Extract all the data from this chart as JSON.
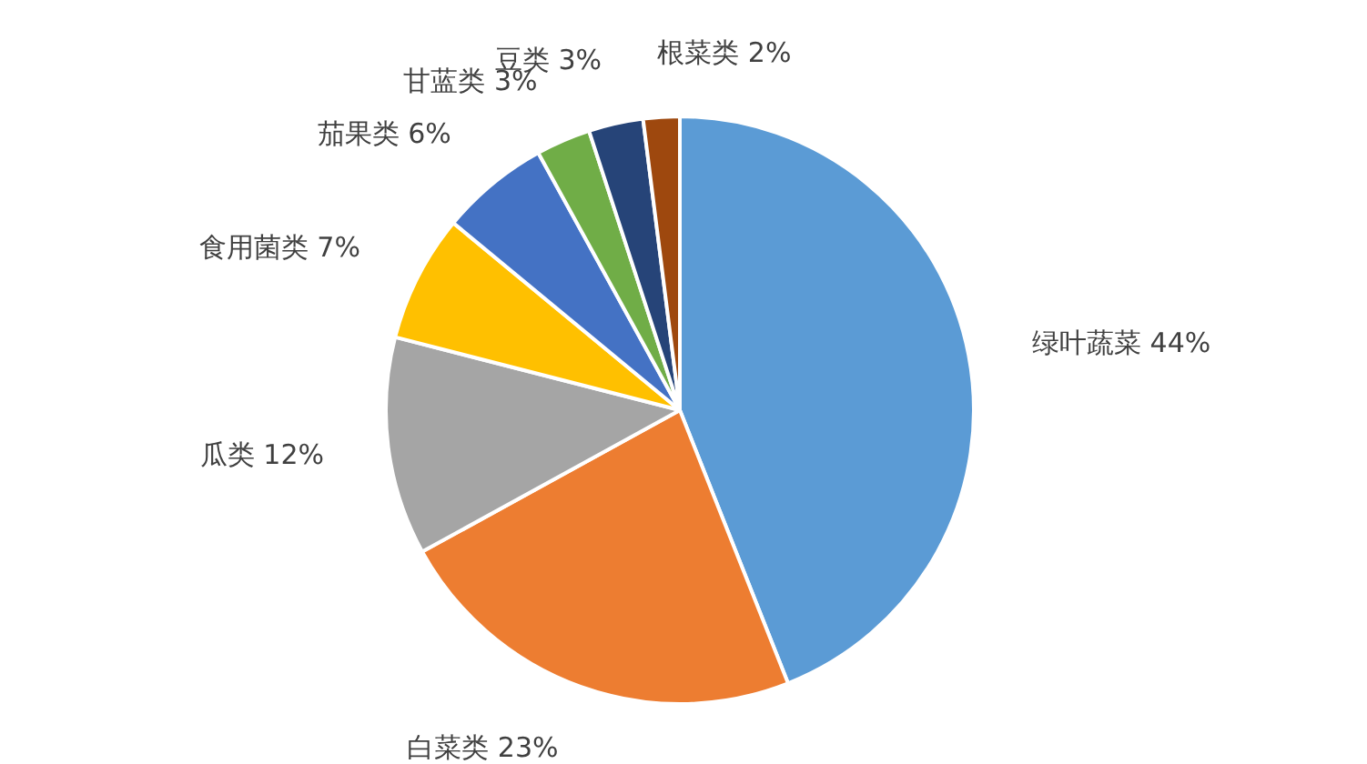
{
  "chart_data": {
    "type": "pie",
    "categories": [
      "绿叶蔬菜",
      "白菜类",
      "瓜类",
      "食用菌类",
      "茄果类",
      "甘蓝类",
      "豆类",
      "根菜类"
    ],
    "values": [
      44,
      23,
      12,
      7,
      6,
      3,
      3,
      2
    ],
    "value_labels": [
      "44%",
      "23%",
      "12%",
      "7%",
      "6%",
      "3%",
      "3%",
      "2%"
    ],
    "colors": [
      "#5b9bd5",
      "#ed7d31",
      "#a5a5a5",
      "#ffc000",
      "#4472c4",
      "#70ad47",
      "#264478",
      "#9e480e"
    ]
  }
}
